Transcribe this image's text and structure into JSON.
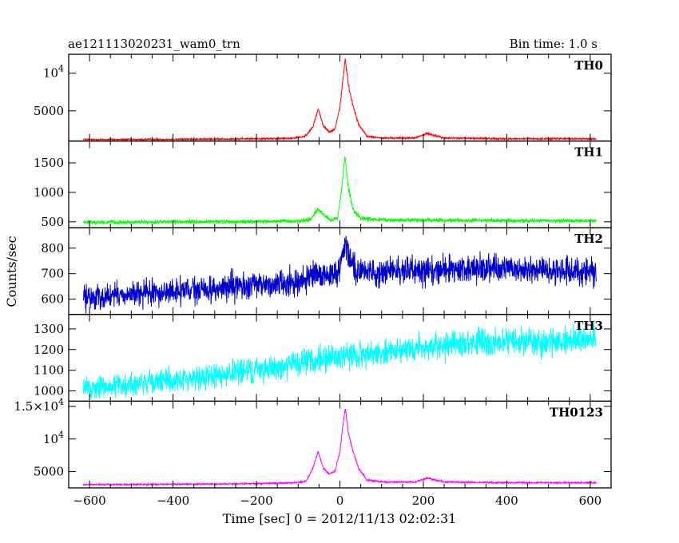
{
  "chart_data": {
    "type": "line",
    "title_left": "ae121113020231_wam0_trn",
    "title_right": "Bin time: 1.0 s",
    "xlabel": "Time [sec] 0 = 2012/11/13 02:02:31",
    "ylabel": "Counts/sec",
    "xlim": [
      -650,
      650
    ],
    "x_ticks": [
      -600,
      -400,
      -200,
      0,
      200,
      400,
      600
    ],
    "x_tick_labels": [
      "−600",
      "−400",
      "−200",
      "0",
      "200",
      "400",
      "600"
    ],
    "panels": [
      {
        "name": "TH0",
        "color": "#ff0000",
        "ylim": [
          1000,
          12500
        ],
        "y_ticks": [
          5000,
          10000
        ],
        "y_tick_labels": [
          [
            "5000",
            ""
          ],
          [
            "10",
            "4"
          ]
        ],
        "noise": 80,
        "points": [
          [
            -615,
            1200
          ],
          [
            -500,
            1200
          ],
          [
            -300,
            1250
          ],
          [
            -120,
            1350
          ],
          [
            -85,
            1600
          ],
          [
            -65,
            2800
          ],
          [
            -52,
            5300
          ],
          [
            -40,
            3000
          ],
          [
            -25,
            2200
          ],
          [
            -12,
            2600
          ],
          [
            0,
            5500
          ],
          [
            8,
            9500
          ],
          [
            13,
            12000
          ],
          [
            20,
            8500
          ],
          [
            30,
            6000
          ],
          [
            45,
            3200
          ],
          [
            65,
            1600
          ],
          [
            100,
            1400
          ],
          [
            180,
            1400
          ],
          [
            210,
            2000
          ],
          [
            250,
            1400
          ],
          [
            400,
            1300
          ],
          [
            615,
            1300
          ]
        ]
      },
      {
        "name": "TH1",
        "color": "#00ff00",
        "ylim": [
          400,
          1870
        ],
        "y_ticks": [
          500,
          1000,
          1500
        ],
        "y_tick_labels": [
          [
            "500",
            ""
          ],
          [
            "1000",
            ""
          ],
          [
            "1500",
            ""
          ]
        ],
        "noise": 25,
        "points": [
          [
            -615,
            490
          ],
          [
            -300,
            500
          ],
          [
            -100,
            510
          ],
          [
            -70,
            540
          ],
          [
            -52,
            720
          ],
          [
            -40,
            620
          ],
          [
            -20,
            520
          ],
          [
            -5,
            560
          ],
          [
            5,
            1100
          ],
          [
            12,
            1620
          ],
          [
            20,
            1100
          ],
          [
            32,
            700
          ],
          [
            50,
            560
          ],
          [
            100,
            530
          ],
          [
            200,
            530
          ],
          [
            400,
            520
          ],
          [
            615,
            520
          ]
        ]
      },
      {
        "name": "TH2",
        "color": "#0000cc",
        "ylim": [
          540,
          880
        ],
        "y_ticks": [
          600,
          700,
          800
        ],
        "y_tick_labels": [
          [
            "600",
            ""
          ],
          [
            "700",
            ""
          ],
          [
            "800",
            ""
          ]
        ],
        "noise": 38,
        "points": [
          [
            -615,
            605
          ],
          [
            -300,
            640
          ],
          [
            -100,
            670
          ],
          [
            -50,
            690
          ],
          [
            -10,
            700
          ],
          [
            0,
            720
          ],
          [
            12,
            820
          ],
          [
            20,
            790
          ],
          [
            40,
            710
          ],
          [
            100,
            705
          ],
          [
            200,
            715
          ],
          [
            400,
            720
          ],
          [
            615,
            705
          ]
        ]
      },
      {
        "name": "TH3",
        "color": "#00ffff",
        "ylim": [
          950,
          1370
        ],
        "y_ticks": [
          1000,
          1100,
          1200,
          1300
        ],
        "y_tick_labels": [
          [
            "1000",
            ""
          ],
          [
            "1100",
            ""
          ],
          [
            "1200",
            ""
          ],
          [
            "1300",
            ""
          ]
        ],
        "noise": 45,
        "points": [
          [
            -615,
            1010
          ],
          [
            -400,
            1050
          ],
          [
            -200,
            1100
          ],
          [
            0,
            1165
          ],
          [
            200,
            1210
          ],
          [
            400,
            1240
          ],
          [
            615,
            1250
          ]
        ]
      },
      {
        "name": "TH0123",
        "color": "#ff00ff",
        "ylim": [
          2500,
          15800
        ],
        "y_ticks": [
          5000,
          10000,
          15000
        ],
        "y_tick_labels": [
          [
            "5000",
            ""
          ],
          [
            "10",
            "4"
          ],
          [
            "1.5×10",
            "4"
          ]
        ],
        "noise": 90,
        "points": [
          [
            -615,
            3000
          ],
          [
            -400,
            3050
          ],
          [
            -200,
            3150
          ],
          [
            -100,
            3300
          ],
          [
            -80,
            3600
          ],
          [
            -65,
            5500
          ],
          [
            -52,
            8100
          ],
          [
            -40,
            5500
          ],
          [
            -25,
            4700
          ],
          [
            -12,
            5000
          ],
          [
            0,
            8000
          ],
          [
            8,
            12500
          ],
          [
            13,
            14800
          ],
          [
            20,
            11000
          ],
          [
            30,
            8500
          ],
          [
            45,
            5500
          ],
          [
            65,
            3700
          ],
          [
            100,
            3400
          ],
          [
            180,
            3400
          ],
          [
            210,
            4000
          ],
          [
            250,
            3400
          ],
          [
            400,
            3300
          ],
          [
            615,
            3300
          ]
        ]
      }
    ]
  }
}
